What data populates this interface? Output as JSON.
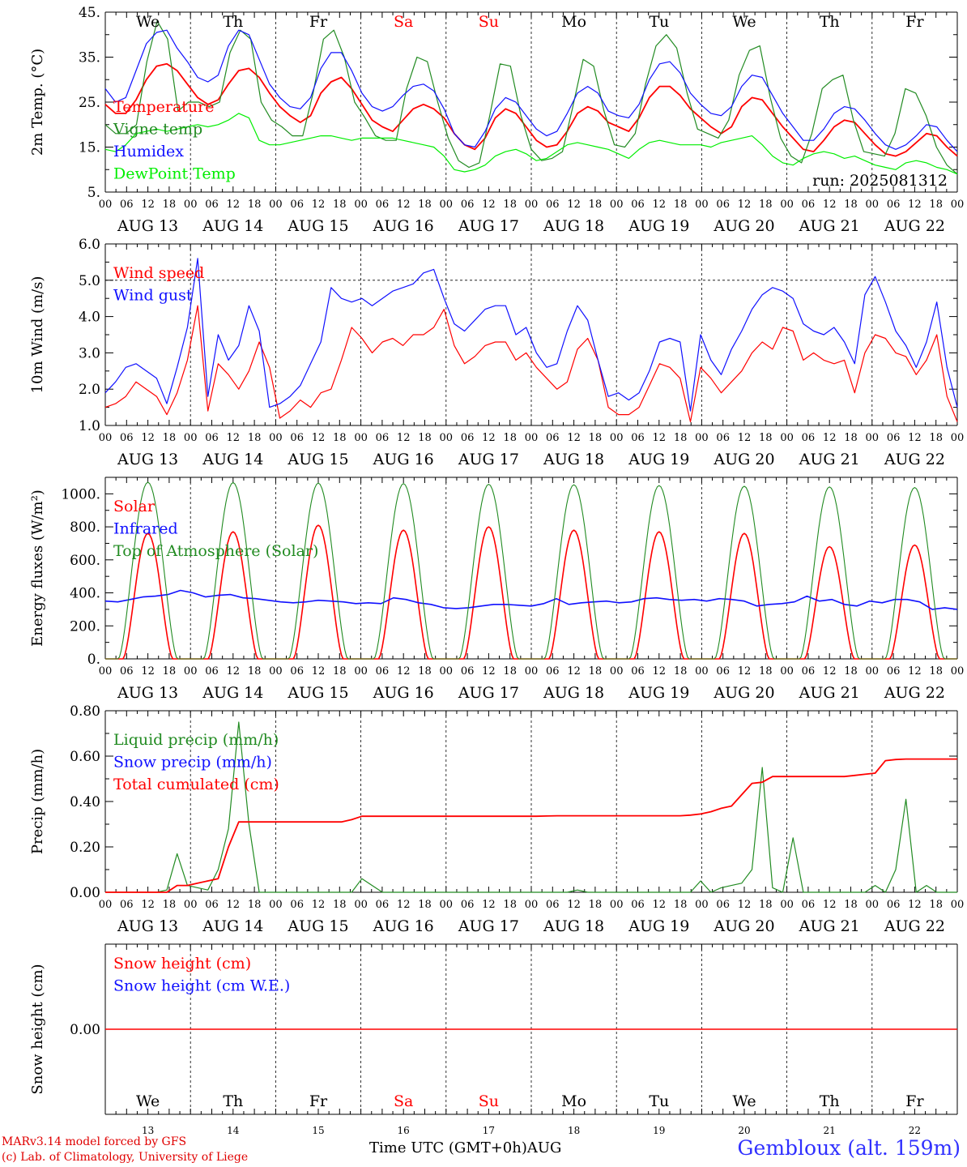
{
  "footer": {
    "model_credit": "MARv3.14 model forced by GFS",
    "lab_credit": "(c) Lab. of Climatology, University of Liege",
    "x_axis_label": "Time UTC (GMT+0h)AUG",
    "location": "Gembloux (alt. 159m)"
  },
  "day_names": [
    "We",
    "Th",
    "Fr",
    "Sa",
    "Su",
    "Mo",
    "Tu",
    "We",
    "Th",
    "Fr"
  ],
  "weekend_flags": [
    false,
    false,
    false,
    true,
    true,
    false,
    false,
    false,
    false,
    false
  ],
  "date_labels": [
    "AUG 13",
    "AUG 14",
    "AUG 15",
    "AUG 16",
    "AUG 17",
    "AUG 18",
    "AUG 19",
    "AUG 20",
    "AUG 21",
    "AUG 22"
  ],
  "day_numbers": [
    "13",
    "14",
    "15",
    "16",
    "17",
    "18",
    "19",
    "20",
    "21",
    "22"
  ],
  "hour_labels": [
    "00",
    "06",
    "12",
    "18"
  ],
  "final_hour_label": "00",
  "colors": {
    "red": "#ff0000",
    "green": "#228B22",
    "blue": "#1010ff",
    "lightgreen": "#00ee00",
    "weekend": "#ff0000"
  },
  "chart_data": [
    {
      "type": "line",
      "ylabel": "2m Temp. (°C)",
      "ylim": [
        5,
        45
      ],
      "yticks": [
        "5.",
        "15.",
        "25.",
        "35.",
        "45."
      ],
      "yticks_values": [
        5,
        15,
        25,
        35,
        45
      ],
      "annotation": "run: 2025081312",
      "x_unit": "hours since AUG 13 00 UTC (3-hourly)",
      "series": [
        {
          "name": "Temperature",
          "color": "red",
          "values": [
            24.5,
            22.5,
            22.5,
            25.5,
            30,
            33,
            33.5,
            32,
            29,
            26,
            24.5,
            25.5,
            29,
            32,
            32.5,
            30.5,
            27,
            24,
            22,
            20.5,
            22,
            27,
            29.5,
            30.5,
            28,
            24.5,
            21,
            19.5,
            18.5,
            21,
            23.5,
            24.5,
            23.5,
            21.5,
            18,
            15.5,
            14.5,
            17,
            21.5,
            23.5,
            22.5,
            19.5,
            16.5,
            15,
            15.5,
            18.5,
            22.5,
            24,
            23,
            20.5,
            19.5,
            18.5,
            21.5,
            26,
            28.5,
            28.5,
            26.5,
            23.5,
            21.5,
            19.5,
            18,
            19.5,
            24,
            26,
            25.5,
            22.5,
            19.5,
            17,
            14.5,
            14,
            16.5,
            19.5,
            21,
            20.5,
            18,
            15.5,
            13.5,
            13,
            14,
            16,
            18,
            17.5,
            15,
            13
          ]
        },
        {
          "name": "Vigne temp",
          "color": "green",
          "values": [
            20,
            18,
            18,
            20,
            34,
            43,
            39,
            23,
            25,
            25,
            24,
            25,
            36,
            41,
            39,
            25,
            21,
            19.5,
            17.5,
            17.5,
            27,
            39,
            41,
            35,
            25,
            21.5,
            17.5,
            16.5,
            16.5,
            28,
            35,
            34,
            25,
            17,
            12,
            10.5,
            11.5,
            22,
            33.5,
            33,
            22,
            14.5,
            12,
            12.5,
            14,
            24,
            34.5,
            33,
            23,
            15.5,
            15,
            18,
            29,
            37.5,
            40,
            37,
            27,
            19,
            18,
            17,
            21,
            31,
            36.5,
            37.5,
            26,
            17,
            13,
            11.5,
            18,
            28,
            30,
            31,
            21,
            14,
            13.5,
            13,
            18,
            28,
            27,
            22,
            15,
            11,
            9
          ]
        },
        {
          "name": "Humidex",
          "color": "blue",
          "values": [
            28,
            25,
            26,
            32,
            38,
            40.5,
            41,
            37,
            34,
            30.5,
            29.5,
            31,
            37.5,
            41,
            40,
            34.5,
            29,
            26,
            24,
            23.5,
            26,
            32.5,
            36,
            36,
            32,
            27,
            24,
            23,
            24,
            26.5,
            28.5,
            29,
            27.5,
            23.5,
            18,
            15.5,
            15,
            18.5,
            23.5,
            26,
            25,
            22,
            19,
            17.5,
            18.5,
            22.5,
            27,
            28.5,
            27,
            23,
            22,
            21.5,
            24.5,
            30,
            33.5,
            34,
            31.5,
            27,
            24.5,
            22.5,
            22,
            24,
            28.5,
            31,
            30.5,
            26.5,
            22.5,
            19.5,
            16.5,
            16.5,
            19,
            22.5,
            24,
            23.5,
            21,
            18,
            15.5,
            14.5,
            15.5,
            17.5,
            20,
            19.5,
            16.5,
            14
          ]
        },
        {
          "name": "DewPoint Temp",
          "color": "lightgreen",
          "values": [
            14.5,
            14,
            15.5,
            18,
            18.5,
            19,
            18.5,
            19,
            19.5,
            20,
            19.5,
            20,
            21,
            22.5,
            21.5,
            16.5,
            15.5,
            15.5,
            16,
            16.5,
            17,
            17.5,
            17.5,
            17,
            16.5,
            17,
            17,
            17,
            17,
            16.5,
            16,
            15.5,
            15,
            13,
            10,
            9.5,
            10,
            11,
            13,
            14,
            14.5,
            13.5,
            12,
            12.5,
            14,
            15.5,
            16,
            15.5,
            15,
            14.5,
            13.5,
            12.5,
            14.5,
            16,
            16.5,
            16,
            15.5,
            15.5,
            15.5,
            15,
            16,
            16.5,
            17,
            17.5,
            15.5,
            13,
            11.5,
            11,
            12.5,
            13.5,
            14,
            13.5,
            12.5,
            13,
            12,
            11,
            10.5,
            10,
            11.5,
            12,
            11.5,
            10.5,
            10,
            9
          ]
        }
      ]
    },
    {
      "type": "line",
      "ylabel": "10m Wind (m/s)",
      "ylim": [
        1,
        6
      ],
      "yticks": [
        "1.0",
        "2.0",
        "3.0",
        "4.0",
        "5.0",
        "6.0"
      ],
      "yticks_values": [
        1,
        2,
        3,
        4,
        5,
        6
      ],
      "reference_line": 5,
      "x_unit": "hours since AUG 13 00 UTC (3-hourly)",
      "series": [
        {
          "name": "Wind speed",
          "color": "red",
          "values": [
            1.5,
            1.6,
            1.8,
            2.2,
            2.0,
            1.8,
            1.3,
            1.9,
            2.8,
            4.3,
            1.4,
            2.7,
            2.4,
            2.0,
            2.5,
            3.3,
            2.6,
            1.2,
            1.4,
            1.7,
            1.5,
            1.9,
            2.0,
            2.8,
            3.7,
            3.4,
            3.0,
            3.3,
            3.4,
            3.2,
            3.5,
            3.5,
            3.7,
            4.2,
            3.2,
            2.7,
            2.9,
            3.2,
            3.3,
            3.3,
            2.8,
            3.0,
            2.6,
            2.3,
            2.0,
            2.2,
            3.1,
            3.4,
            2.8,
            1.5,
            1.3,
            1.3,
            1.5,
            2.1,
            2.7,
            2.6,
            2.3,
            1.1,
            2.6,
            2.3,
            1.9,
            2.2,
            2.5,
            3.0,
            3.3,
            3.1,
            3.7,
            3.6,
            2.8,
            3.0,
            2.8,
            2.7,
            2.8,
            1.9,
            3.0,
            3.5,
            3.4,
            3.0,
            2.9,
            2.4,
            2.8,
            3.5,
            1.8,
            1.1
          ]
        },
        {
          "name": "Wind gust",
          "color": "blue",
          "values": [
            1.9,
            2.2,
            2.6,
            2.7,
            2.5,
            2.3,
            1.6,
            2.6,
            3.7,
            5.6,
            1.8,
            3.5,
            2.8,
            3.2,
            4.3,
            3.6,
            1.5,
            1.6,
            1.8,
            2.1,
            2.7,
            3.3,
            4.8,
            4.5,
            4.4,
            4.5,
            4.3,
            4.5,
            4.7,
            4.8,
            4.9,
            5.2,
            5.3,
            4.5,
            3.8,
            3.6,
            3.9,
            4.2,
            4.3,
            4.3,
            3.5,
            3.7,
            3.0,
            2.6,
            2.7,
            3.6,
            4.3,
            3.9,
            2.8,
            1.8,
            1.9,
            1.7,
            1.9,
            2.5,
            3.3,
            3.4,
            3.3,
            1.4,
            3.5,
            2.8,
            2.4,
            3.1,
            3.6,
            4.2,
            4.6,
            4.8,
            4.7,
            4.5,
            3.8,
            3.6,
            3.5,
            3.7,
            3.3,
            2.7,
            4.6,
            5.1,
            4.4,
            3.6,
            3.2,
            2.6,
            3.3,
            4.4,
            2.6,
            1.5
          ]
        }
      ]
    },
    {
      "type": "line",
      "ylabel": "Energy fluxes (W/m²)",
      "ylim": [
        0,
        1100
      ],
      "yticks": [
        "0.",
        "200.",
        "400.",
        "600.",
        "800.",
        "1000."
      ],
      "yticks_values": [
        0,
        200,
        400,
        600,
        800,
        1000
      ],
      "x_unit": "hours since AUG 13 00 UTC",
      "series": [
        {
          "name": "Solar",
          "color": "red",
          "peaks": [
            760,
            770,
            810,
            780,
            800,
            780,
            770,
            760,
            680,
            690
          ]
        },
        {
          "name": "Infrared",
          "color": "blue",
          "values": [
            350,
            345,
            360,
            375,
            380,
            390,
            415,
            400,
            375,
            385,
            390,
            370,
            365,
            355,
            345,
            340,
            345,
            355,
            350,
            345,
            335,
            340,
            335,
            370,
            360,
            340,
            330,
            310,
            305,
            310,
            320,
            330,
            330,
            325,
            320,
            335,
            365,
            330,
            340,
            345,
            350,
            340,
            345,
            365,
            370,
            360,
            355,
            360,
            350,
            365,
            360,
            350,
            320,
            330,
            335,
            345,
            380,
            350,
            360,
            330,
            320,
            350,
            340,
            360,
            360,
            345,
            300,
            310,
            300
          ]
        },
        {
          "name": "Top of Atmosphere (Solar)",
          "color": "green",
          "peaks": [
            1070,
            1068,
            1065,
            1062,
            1058,
            1055,
            1050,
            1046,
            1042,
            1038
          ]
        }
      ]
    },
    {
      "type": "line",
      "ylabel": "Precip (mm/h)",
      "ylim": [
        0,
        0.8
      ],
      "yticks": [
        "0.00",
        "0.20",
        "0.40",
        "0.60",
        "0.80"
      ],
      "yticks_values": [
        0,
        0.2,
        0.4,
        0.6,
        0.8
      ],
      "x_unit": "hours since AUG 13 00 UTC (3-hourly)",
      "series": [
        {
          "name": "Liquid precip (mm/h)",
          "color": "green",
          "values": [
            0,
            0,
            0,
            0,
            0,
            0,
            0.01,
            0.17,
            0.03,
            0.02,
            0.01,
            0.1,
            0.28,
            0.75,
            0.3,
            0,
            0,
            0,
            0,
            0,
            0,
            0,
            0,
            0,
            0,
            0.06,
            0.03,
            0,
            0,
            0,
            0,
            0,
            0,
            0,
            0,
            0,
            0,
            0,
            0,
            0,
            0,
            0,
            0,
            0,
            0,
            0,
            0.01,
            0,
            0,
            0,
            0,
            0,
            0,
            0,
            0,
            0,
            0,
            0,
            0.05,
            0,
            0.02,
            0.03,
            0.04,
            0.1,
            0.55,
            0.02,
            0,
            0.24,
            0,
            0,
            0,
            0,
            0,
            0,
            0,
            0.03,
            0,
            0.1,
            0.41,
            0,
            0.03,
            0,
            0,
            0
          ]
        },
        {
          "name": "Snow precip (mm/h)",
          "color": "blue",
          "values": []
        },
        {
          "name": "Total cumulated (cm)",
          "color": "red",
          "values": [
            0,
            0,
            0,
            0,
            0,
            0,
            0,
            0.03,
            0.03,
            0.04,
            0.05,
            0.06,
            0.2,
            0.31,
            0.31,
            0.31,
            0.31,
            0.31,
            0.31,
            0.31,
            0.31,
            0.31,
            0.31,
            0.31,
            0.32,
            0.335,
            0.335,
            0.335,
            0.335,
            0.335,
            0.335,
            0.335,
            0.335,
            0.335,
            0.335,
            0.335,
            0.335,
            0.335,
            0.335,
            0.335,
            0.335,
            0.335,
            0.335,
            0.336,
            0.337,
            0.337,
            0.337,
            0.337,
            0.337,
            0.337,
            0.337,
            0.337,
            0.337,
            0.337,
            0.337,
            0.337,
            0.337,
            0.34,
            0.345,
            0.355,
            0.37,
            0.38,
            0.43,
            0.48,
            0.485,
            0.51,
            0.51,
            0.51,
            0.51,
            0.51,
            0.51,
            0.51,
            0.51,
            0.515,
            0.52,
            0.525,
            0.58,
            0.585,
            0.587,
            0.587,
            0.587,
            0.587,
            0.587,
            0.587
          ]
        }
      ]
    },
    {
      "type": "line",
      "ylabel": "Snow height (cm)",
      "ylim": [
        -1,
        1
      ],
      "yticks": [
        "0.00"
      ],
      "yticks_values": [
        0
      ],
      "x_unit": "hours since AUG 13 00 UTC",
      "series": [
        {
          "name": "Snow height (cm)",
          "color": "red",
          "values": [
            0,
            0
          ]
        },
        {
          "name": "Snow height (cm W.E.)",
          "color": "blue",
          "values": []
        }
      ]
    }
  ]
}
